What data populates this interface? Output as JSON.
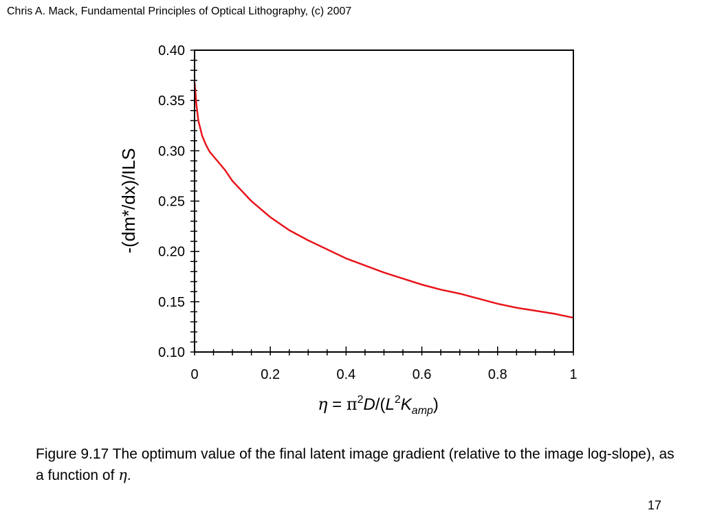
{
  "header": "Chris A. Mack, Fundamental Principles of Optical Lithography, (c) 2007",
  "caption": {
    "text": "Figure 9.17  The optimum value of the final latent image gradient (relative to the image log-slope), as a function of ",
    "eta": "η",
    "end": "."
  },
  "page_number": "17",
  "chart_data": {
    "type": "line",
    "ylabel": "-(dm*/dx)/ILS",
    "xlabel": {
      "eta": "η",
      "eq": " = ",
      "pi": "π",
      "sup2a": "2",
      "D": "D",
      "slash_paren": "/(",
      "L": "L",
      "sup2b": "2",
      "K": "K",
      "amp": "amp",
      "close": ")"
    },
    "xlim": [
      0,
      1
    ],
    "ylim": [
      0.1,
      0.4
    ],
    "xticks": [
      "0",
      "0.2",
      "0.4",
      "0.6",
      "0.8",
      "1"
    ],
    "yticks": [
      "0.10",
      "0.15",
      "0.20",
      "0.25",
      "0.30",
      "0.35",
      "0.40"
    ],
    "line_color": "#e8141b",
    "series": [
      {
        "x": [
          0.0,
          0.005,
          0.01,
          0.02,
          0.03,
          0.04,
          0.06,
          0.08,
          0.1,
          0.15,
          0.2,
          0.25,
          0.3,
          0.35,
          0.4,
          0.45,
          0.5,
          0.55,
          0.6,
          0.65,
          0.7,
          0.75,
          0.8,
          0.85,
          0.9,
          0.95,
          1.0
        ],
        "y": [
          0.368,
          0.345,
          0.33,
          0.315,
          0.306,
          0.299,
          0.29,
          0.281,
          0.27,
          0.25,
          0.234,
          0.221,
          0.211,
          0.202,
          0.193,
          0.186,
          0.179,
          0.173,
          0.167,
          0.162,
          0.158,
          0.153,
          0.148,
          0.144,
          0.141,
          0.138,
          0.134
        ]
      }
    ]
  }
}
